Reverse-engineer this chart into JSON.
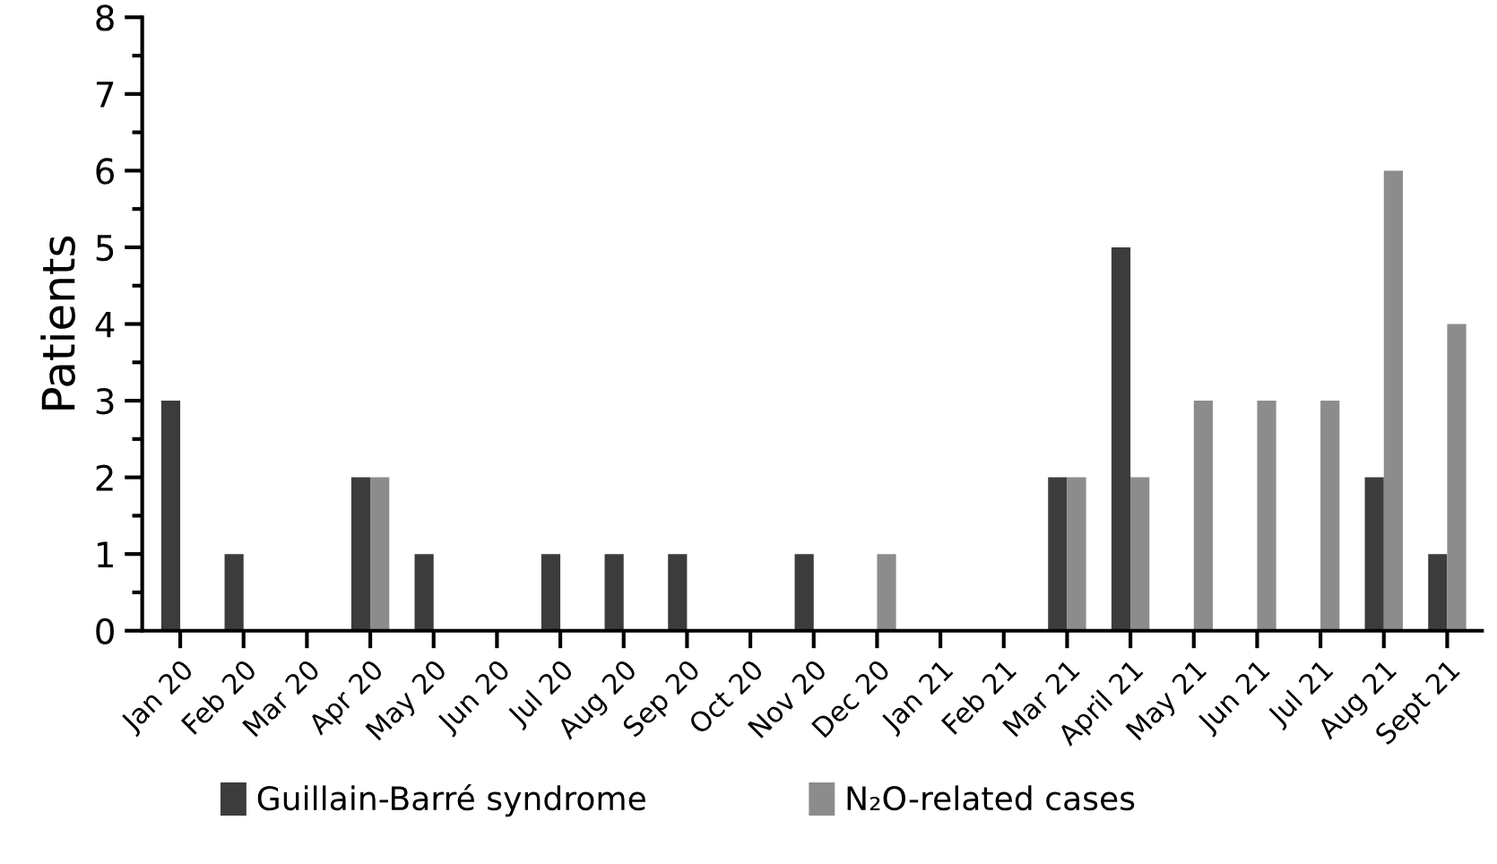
{
  "chart_data": {
    "type": "bar",
    "ylabel": "Patients",
    "categories": [
      "Jan 20",
      "Feb 20",
      "Mar 20",
      "Apr 20",
      "May 20",
      "Jun 20",
      "Jul 20",
      "Aug 20",
      "Sep 20",
      "Oct 20",
      "Nov 20",
      "Dec 20",
      "Jan 21",
      "Feb 21",
      "Mar 21",
      "April 21",
      "May 21",
      "Jun 21",
      "Jul 21",
      "Aug 21",
      "Sept 21"
    ],
    "series": [
      {
        "name": "Guillain-Barré syndrome",
        "color": "#3c3c3c",
        "values": [
          3,
          1,
          0,
          2,
          1,
          0,
          1,
          1,
          1,
          0,
          1,
          0,
          0,
          0,
          2,
          5,
          0,
          0,
          0,
          2,
          1
        ]
      },
      {
        "name": "N₂O-related cases",
        "color": "#8c8c8c",
        "values": [
          0,
          0,
          0,
          2,
          0,
          0,
          0,
          0,
          0,
          0,
          0,
          1,
          0,
          0,
          2,
          2,
          3,
          3,
          3,
          6,
          4
        ]
      }
    ],
    "ylim": [
      0,
      8
    ],
    "yticks": [
      0,
      1,
      2,
      3,
      4,
      5,
      6,
      7,
      8
    ],
    "grid": false,
    "legend": "bottom"
  }
}
